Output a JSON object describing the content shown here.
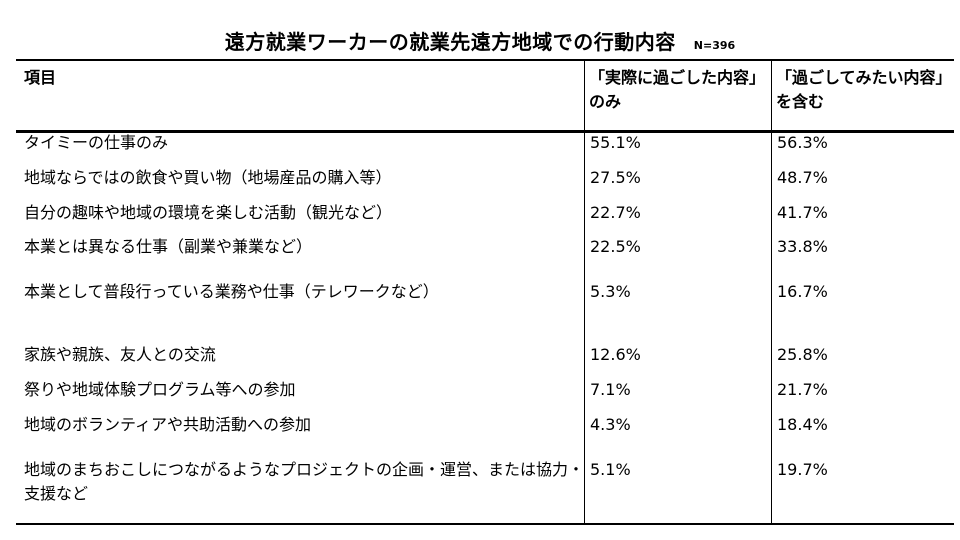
{
  "title": "遠方就業ワーカーの就業先遠方地域での行動内容",
  "sample_size": "N=396",
  "columns": {
    "item": "項目",
    "actual": "「実際に過ごした内容」のみ",
    "wish": "「過ごしてみたい内容」を含む"
  },
  "rows": [
    {
      "label": "タイミーの仕事のみ",
      "actual": "55.1%",
      "wish": "56.3%"
    },
    {
      "label": "地域ならではの飲食や買い物（地場産品の購入等）",
      "actual": "27.5%",
      "wish": "48.7%"
    },
    {
      "label": "自分の趣味や地域の環境を楽しむ活動（観光など）",
      "actual": "22.7%",
      "wish": "41.7%"
    },
    {
      "label": "本業とは異なる仕事（副業や兼業など）",
      "actual": "22.5%",
      "wish": "33.8%"
    },
    {
      "label": "本業として普段行っている業務や仕事（テレワークなど）",
      "actual": "5.3%",
      "wish": "16.7%"
    },
    {
      "label": "家族や親族、友人との交流",
      "actual": "12.6%",
      "wish": "25.8%"
    },
    {
      "label": "祭りや地域体験プログラム等への参加",
      "actual": "7.1%",
      "wish": "21.7%"
    },
    {
      "label": "地域のボランティアや共助活動への参加",
      "actual": "4.3%",
      "wish": "18.4%"
    },
    {
      "label": "地域のまちおこしにつながるようなプロジェクトの企画・運営、または協力・支援など",
      "actual": "5.1%",
      "wish": "19.7%"
    }
  ]
}
